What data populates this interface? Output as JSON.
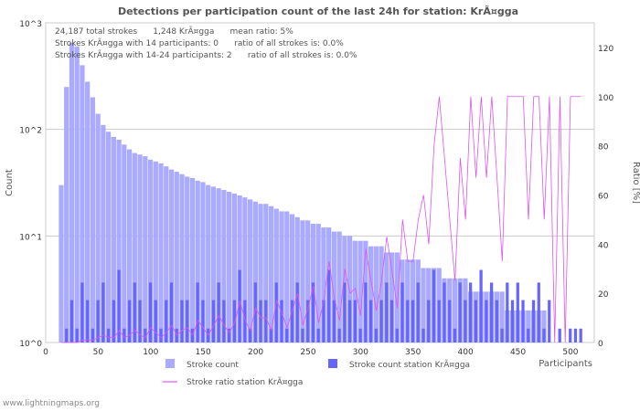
{
  "chart_data": {
    "type": "bar",
    "title": "Detections per participation count of the last 24h for station: KrÃ¤gga",
    "xlabel": "Participants",
    "ylabel": "Count",
    "y2label": "Ratio [%]",
    "xlim": [
      0,
      520
    ],
    "ylim_log10": [
      0,
      3
    ],
    "y2lim": [
      0,
      130
    ],
    "x_ticks": [
      "0",
      "50",
      "100",
      "150",
      "200",
      "250",
      "300",
      "350",
      "400",
      "450",
      "500"
    ],
    "y_ticks": [
      "10^0",
      "10^1",
      "10^2",
      "10^3"
    ],
    "y2_ticks": [
      "0",
      "20",
      "40",
      "60",
      "80",
      "100",
      "120"
    ],
    "bin_step": 5,
    "x": [
      15,
      20,
      25,
      30,
      35,
      40,
      45,
      50,
      55,
      60,
      65,
      70,
      75,
      80,
      85,
      90,
      95,
      100,
      105,
      110,
      115,
      120,
      125,
      130,
      135,
      140,
      145,
      150,
      155,
      160,
      165,
      170,
      175,
      180,
      185,
      190,
      195,
      200,
      205,
      210,
      215,
      220,
      225,
      230,
      235,
      240,
      245,
      250,
      255,
      260,
      265,
      270,
      275,
      280,
      285,
      290,
      295,
      300,
      305,
      310,
      315,
      320,
      325,
      330,
      335,
      340,
      345,
      350,
      355,
      360,
      365,
      370,
      375,
      380,
      385,
      390,
      395,
      400,
      405,
      410,
      415,
      420,
      425,
      430,
      435,
      440,
      445,
      450,
      455,
      460,
      465,
      470,
      475,
      480,
      485,
      490,
      495,
      500,
      505,
      510
    ],
    "series": [
      {
        "name": "Stroke count",
        "color": "#aaaaff",
        "values": [
          30,
          250,
          650,
          600,
          400,
          280,
          200,
          140,
          110,
          95,
          85,
          80,
          72,
          65,
          60,
          58,
          56,
          52,
          50,
          48,
          45,
          42,
          40,
          38,
          36,
          35,
          33,
          32,
          30,
          29,
          28,
          27,
          26,
          25,
          24,
          23,
          22,
          21,
          20,
          20,
          19,
          18,
          17,
          17,
          16,
          15,
          14,
          14,
          13,
          13,
          12,
          12,
          11,
          11,
          10,
          10,
          9,
          9,
          9,
          8,
          8,
          8,
          7,
          7,
          7,
          6,
          6,
          6,
          6,
          5,
          5,
          5,
          5,
          4,
          4,
          4,
          4,
          4,
          3,
          3,
          3,
          3,
          3,
          3,
          3,
          2,
          2,
          2,
          2,
          2,
          2,
          2,
          2,
          1,
          1,
          1,
          1,
          1,
          1,
          1
        ]
      },
      {
        "name": "Stroke count station KrÃ¤gga",
        "color": "#6666ff",
        "values": [
          0,
          1,
          2,
          1,
          3,
          2,
          1,
          2,
          3,
          1,
          2,
          4,
          1,
          2,
          3,
          2,
          1,
          3,
          2,
          1,
          2,
          3,
          1,
          2,
          2,
          1,
          3,
          2,
          1,
          2,
          3,
          2,
          1,
          2,
          4,
          2,
          1,
          3,
          2,
          2,
          1,
          3,
          2,
          1,
          2,
          3,
          1,
          2,
          3,
          1,
          2,
          4,
          2,
          1,
          3,
          2,
          2,
          1,
          3,
          2,
          1,
          2,
          3,
          2,
          1,
          3,
          2,
          2,
          3,
          1,
          2,
          4,
          2,
          3,
          2,
          1,
          3,
          2,
          3,
          2,
          4,
          2,
          3,
          2,
          1,
          3,
          2,
          3,
          2,
          1,
          2,
          3,
          1,
          2,
          0,
          1,
          0,
          1,
          1,
          1
        ]
      },
      {
        "name": "Stroke ratio station KrÃ¤gga",
        "color": "#dd55ee",
        "values": [
          0,
          0,
          0,
          0,
          1,
          1,
          1,
          2,
          3,
          2,
          2,
          5,
          2,
          3,
          5,
          3,
          2,
          6,
          4,
          2,
          4,
          7,
          3,
          5,
          6,
          3,
          9,
          6,
          3,
          7,
          11,
          7,
          4,
          8,
          17,
          9,
          5,
          14,
          10,
          10,
          5,
          17,
          12,
          6,
          13,
          20,
          7,
          14,
          23,
          8,
          17,
          33,
          18,
          9,
          30,
          20,
          22,
          11,
          38,
          25,
          13,
          25,
          43,
          29,
          14,
          50,
          33,
          33,
          50,
          60,
          40,
          80,
          100,
          75,
          50,
          25,
          75,
          50,
          100,
          67,
          100,
          67,
          100,
          67,
          33,
          100,
          100,
          100,
          100,
          50,
          100,
          100,
          50,
          100,
          0,
          100,
          0,
          100,
          100,
          100
        ]
      }
    ],
    "annotations": [
      "24,187 total strokes      1,248 KrÃ¤gga      mean ratio: 5%",
      "Strokes KrÃ¤gga with 14 participants: 0      ratio of all strokes is: 0.0%",
      "Strokes KrÃ¤gga with 14-24 participants: 2      ratio of all strokes is: 0.0%"
    ],
    "legend": [
      "Stroke count",
      "Stroke count station KrÃ¤gga",
      "Stroke ratio station KrÃ¤gga"
    ],
    "legend_position": "bottom",
    "grid": true
  },
  "footer": "www.lightningmaps.org"
}
